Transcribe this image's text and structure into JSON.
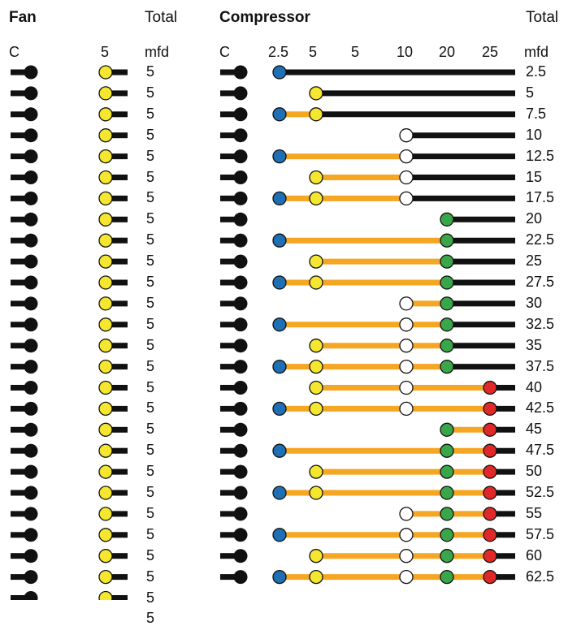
{
  "fan": {
    "title": "Fan",
    "total_label": "Total",
    "columns": [
      "C",
      "5",
      "mfd"
    ],
    "rows": [
      "5",
      "5",
      "5",
      "5",
      "5",
      "5",
      "5",
      "5",
      "5",
      "5",
      "5",
      "5",
      "5",
      "5",
      "5",
      "5",
      "5",
      "5",
      "5",
      "5",
      "5",
      "5",
      "5",
      "5",
      "5",
      "5",
      "5"
    ],
    "tap_color": "#f5e630"
  },
  "compressor": {
    "title": "Compressor",
    "total_label": "Total",
    "columns": [
      "C",
      "2.5",
      "5",
      "5",
      "10",
      "20",
      "25",
      "mfd"
    ],
    "rows": [
      {
        "total": "2.5",
        "taps": [
          2.5
        ]
      },
      {
        "total": "5",
        "taps": [
          5
        ]
      },
      {
        "total": "7.5",
        "taps": [
          2.5,
          5
        ]
      },
      {
        "total": "10",
        "taps": [
          10
        ]
      },
      {
        "total": "12.5",
        "taps": [
          2.5,
          10
        ]
      },
      {
        "total": "15",
        "taps": [
          5,
          10
        ]
      },
      {
        "total": "17.5",
        "taps": [
          2.5,
          5,
          10
        ]
      },
      {
        "total": "20",
        "taps": [
          20
        ]
      },
      {
        "total": "22.5",
        "taps": [
          2.5,
          20
        ]
      },
      {
        "total": "25",
        "taps": [
          5,
          20
        ]
      },
      {
        "total": "27.5",
        "taps": [
          2.5,
          5,
          20
        ]
      },
      {
        "total": "30",
        "taps": [
          10,
          20
        ]
      },
      {
        "total": "32.5",
        "taps": [
          2.5,
          10,
          20
        ]
      },
      {
        "total": "35",
        "taps": [
          5,
          10,
          20
        ]
      },
      {
        "total": "37.5",
        "taps": [
          2.5,
          5,
          10,
          20
        ]
      },
      {
        "total": "40",
        "taps": [
          5,
          10,
          25
        ]
      },
      {
        "total": "42.5",
        "taps": [
          2.5,
          5,
          10,
          25
        ]
      },
      {
        "total": "45",
        "taps": [
          20,
          25
        ]
      },
      {
        "total": "47.5",
        "taps": [
          2.5,
          20,
          25
        ]
      },
      {
        "total": "50",
        "taps": [
          5,
          20,
          25
        ]
      },
      {
        "total": "52.5",
        "taps": [
          2.5,
          5,
          20,
          25
        ]
      },
      {
        "total": "55",
        "taps": [
          10,
          20,
          25
        ]
      },
      {
        "total": "57.5",
        "taps": [
          2.5,
          10,
          20,
          25
        ]
      },
      {
        "total": "60",
        "taps": [
          5,
          10,
          20,
          25
        ]
      },
      {
        "total": "62.5",
        "taps": [
          2.5,
          5,
          10,
          20,
          25
        ]
      }
    ],
    "tap_colors": {
      "2.5": "#1f6fb5",
      "5": "#f5e630",
      "10": "#ffffff",
      "20": "#3aa64a",
      "25": "#e02828"
    },
    "link_color": "#f5a623",
    "line_color": "#111111"
  }
}
